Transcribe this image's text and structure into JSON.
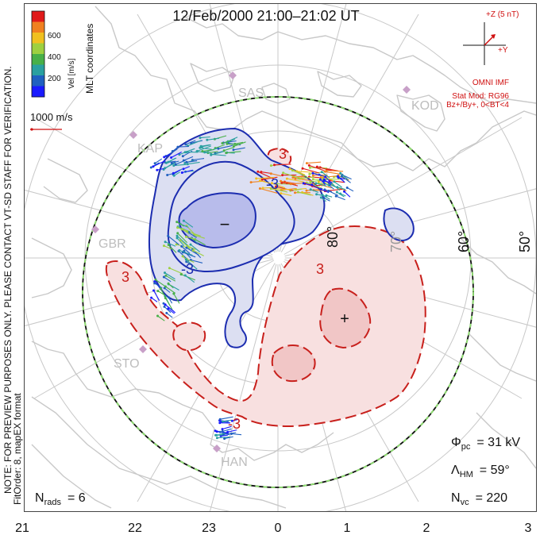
{
  "title": "12/Feb/2000 21:00–21:02 UT",
  "velocity_scale": {
    "label": "Vel [m/s]",
    "ticks": [
      "600",
      "400",
      "200"
    ],
    "colors": [
      "#e01a1a",
      "#f08020",
      "#f0c020",
      "#9ed040",
      "#48b048",
      "#2aa0a0",
      "#2060c0",
      "#1a1aff"
    ]
  },
  "coordinates_label": "MLT coordinates",
  "ref_vector_label": "1000 m/s",
  "note": "NOTE: FOR PREVIEW PURPOSES ONLY. PLEASE CONTACT VT-SD STAFF FOR VERIFICATION.",
  "fit_label": "FitOrder: 8, mapEX format",
  "imf": {
    "z_label": "+Z (5 nT)",
    "y_label": "+Y",
    "source": "OMNI IMF",
    "model": "Stat Mod: RG96",
    "model_conditions": "Bz+/By+, 0<BT<4"
  },
  "stations": [
    "SAS",
    "KOD",
    "KAP",
    "GBR",
    "STO",
    "HAN"
  ],
  "lat_labels": [
    "80°",
    "70°",
    "60°",
    "50°"
  ],
  "contour_labels": {
    "neg": [
      "-3",
      "-3",
      "-3"
    ],
    "pos": [
      "3",
      "3",
      "3"
    ]
  },
  "markers": {
    "min": "−",
    "max": "+"
  },
  "stats": {
    "phi_symbol": "Φ",
    "phi_sub": "pc",
    "phi_value": "= 31 kV",
    "lambda_symbol": "Λ",
    "lambda_sub": "HM",
    "lambda_value": "= 59°",
    "n_symbol": "N",
    "n_sub": "vc",
    "n_value": "= 220",
    "rads_symbol": "N",
    "rads_sub": "rads",
    "rads_value": "= 6"
  },
  "mlt_ticks": [
    "21",
    "22",
    "23",
    "0",
    "1",
    "2",
    "3"
  ],
  "colors": {
    "neg_fill": "#dcdff2",
    "neg_core": "#b8bceb",
    "neg_line": "#1c2db0",
    "pos_fill": "#f8e0e0",
    "pos_core": "#f1c6c6",
    "pos_line": "#c8201c",
    "coast": "#c8c8c8",
    "grid": "#c8c8c8",
    "imf_red": "#d01010"
  }
}
